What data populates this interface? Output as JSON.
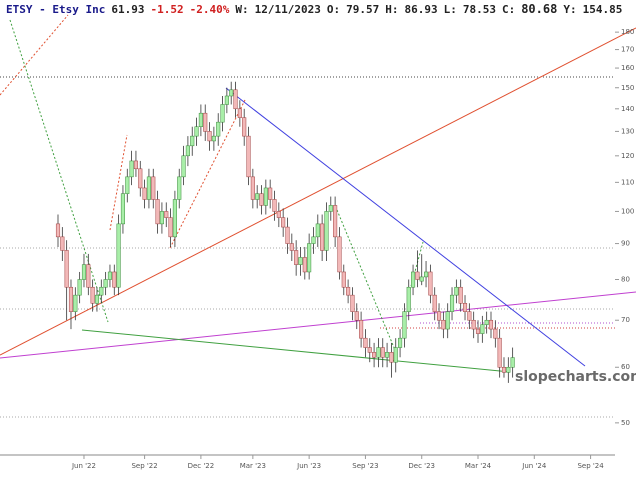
{
  "chart_data": {
    "type": "candlestick",
    "header": {
      "symbol": "ETSY - Etsy Inc",
      "last": "61.93",
      "change": "-1.52",
      "change_pct": "-2.40%",
      "week_label": "W:",
      "week": "12/11/2023",
      "open_label": "O:",
      "open": "79.57",
      "high_label": "H:",
      "high": "86.93",
      "low_label": "L:",
      "low": "78.53",
      "close_label": "C:",
      "close": "80.68",
      "y_label": "Y:",
      "y": "154.85"
    },
    "watermark": "slopecharts.com",
    "log_scale": true,
    "ylim": [
      45,
      200
    ],
    "yticks": [
      50,
      60,
      70,
      80,
      90,
      100,
      110,
      120,
      130,
      140,
      150,
      160,
      170,
      180
    ],
    "up_color": "#a8eea8",
    "down_color": "#f2b8b8",
    "categories": [
      null,
      null,
      null,
      null,
      null,
      null,
      "Jun '22",
      null,
      null,
      null,
      null,
      null,
      null,
      null,
      null,
      null,
      null,
      null,
      null,
      null,
      "Sep '22",
      null,
      null,
      null,
      null,
      null,
      null,
      null,
      null,
      null,
      null,
      null,
      null,
      "Dec '22",
      null,
      null,
      null,
      null,
      null,
      null,
      null,
      null,
      null,
      null,
      null,
      "Mar '23",
      null,
      null,
      null,
      null,
      null,
      null,
      null,
      null,
      null,
      null,
      null,
      null,
      "Jun '23",
      null,
      null,
      null,
      null,
      null,
      null,
      null,
      null,
      null,
      null,
      null,
      null,
      "Sep '23",
      null,
      null,
      null,
      null,
      null,
      null,
      null,
      null,
      null,
      null,
      null,
      null,
      "Dec '23",
      null,
      null,
      null,
      null,
      null,
      null,
      null,
      null,
      null,
      null,
      null,
      null,
      "Mar '24",
      null,
      null,
      null,
      null,
      null,
      null,
      null,
      null,
      null,
      null,
      null,
      null,
      "Jun '24",
      null,
      null,
      null,
      null,
      null,
      null,
      null,
      null,
      null,
      null,
      null,
      null,
      "Sep '24"
    ],
    "open": [
      96,
      92,
      88,
      78,
      72,
      76,
      80,
      84,
      78,
      74,
      76,
      78,
      80,
      82,
      78,
      96,
      106,
      112,
      118,
      115,
      108,
      104,
      112,
      104,
      96,
      100,
      98,
      92,
      104,
      112,
      120,
      124,
      128,
      132,
      138,
      130,
      126,
      128,
      134,
      142,
      146,
      149,
      140,
      136,
      128,
      112,
      104,
      106,
      102,
      108,
      104,
      100,
      98,
      95,
      90,
      88,
      84,
      86,
      82,
      90,
      92,
      96,
      88,
      100,
      102,
      92,
      82,
      78,
      76,
      72,
      70,
      66,
      64,
      63,
      62,
      64,
      62,
      63,
      61,
      64,
      66,
      72,
      78,
      82,
      79.57,
      80.68,
      82,
      76,
      72,
      70,
      68,
      72,
      76,
      78,
      74,
      72,
      70,
      68,
      67,
      69,
      70,
      68,
      66,
      60,
      59,
      60,
      null,
      null,
      null,
      null,
      null,
      null,
      null,
      null,
      null,
      null,
      null,
      null,
      null,
      null,
      null,
      null,
      null,
      null
    ],
    "high": [
      99,
      95,
      91,
      80,
      78,
      82,
      87,
      87,
      80,
      78,
      80,
      82,
      84,
      84,
      99,
      109,
      115,
      122,
      122,
      118,
      111,
      115,
      115,
      107,
      103,
      103,
      101,
      107,
      115,
      124,
      128,
      132,
      136,
      142,
      142,
      134,
      132,
      138,
      146,
      150,
      153,
      153,
      144,
      140,
      132,
      115,
      109,
      109,
      111,
      111,
      107,
      103,
      101,
      98,
      93,
      91,
      89,
      89,
      93,
      95,
      99,
      99,
      103,
      105,
      105,
      95,
      84,
      80,
      78,
      74,
      72,
      68,
      66,
      65,
      66,
      66,
      65,
      65,
      66,
      68,
      74,
      80,
      84,
      88,
      86.93,
      85,
      84,
      78,
      74,
      72,
      74,
      78,
      80,
      80,
      76,
      74,
      72,
      70,
      71,
      72,
      72,
      70,
      68,
      62,
      62,
      64,
      null,
      null,
      null,
      null,
      null,
      null,
      null,
      null,
      null,
      null,
      null,
      null,
      null,
      null,
      null,
      null,
      null,
      null
    ],
    "low": [
      89,
      85,
      70,
      68,
      70,
      74,
      78,
      76,
      72,
      72,
      74,
      76,
      78,
      76,
      76,
      93,
      103,
      109,
      112,
      105,
      101,
      101,
      101,
      93,
      93,
      95,
      89,
      89,
      101,
      109,
      116,
      120,
      124,
      128,
      126,
      122,
      122,
      124,
      130,
      138,
      142,
      136,
      132,
      124,
      109,
      101,
      101,
      99,
      99,
      101,
      97,
      95,
      92,
      87,
      85,
      81,
      81,
      80,
      80,
      87,
      89,
      85,
      85,
      97,
      89,
      80,
      76,
      74,
      70,
      68,
      64,
      62,
      61,
      60,
      60,
      60,
      60,
      58,
      59,
      62,
      64,
      70,
      76,
      78,
      78.53,
      78,
      74,
      70,
      68,
      66,
      66,
      70,
      74,
      72,
      70,
      68,
      66,
      65,
      65,
      67,
      66,
      64,
      58,
      58,
      57,
      58,
      null,
      null,
      null,
      null,
      null,
      null,
      null,
      null,
      null,
      null,
      null,
      null,
      null,
      null,
      null,
      null,
      null,
      null
    ],
    "close": [
      92,
      88,
      78,
      72,
      76,
      80,
      84,
      78,
      74,
      76,
      78,
      80,
      82,
      78,
      96,
      106,
      112,
      118,
      115,
      108,
      104,
      112,
      104,
      96,
      100,
      98,
      92,
      104,
      112,
      120,
      124,
      128,
      132,
      138,
      130,
      126,
      128,
      134,
      142,
      146,
      149,
      140,
      136,
      128,
      112,
      104,
      106,
      102,
      108,
      104,
      100,
      98,
      95,
      90,
      88,
      84,
      86,
      82,
      90,
      92,
      96,
      88,
      100,
      102,
      92,
      82,
      78,
      76,
      72,
      70,
      66,
      64,
      63,
      62,
      64,
      62,
      63,
      61,
      64,
      66,
      72,
      78,
      82,
      80,
      80.68,
      82,
      76,
      72,
      70,
      68,
      72,
      76,
      78,
      74,
      72,
      70,
      68,
      67,
      69,
      70,
      68,
      66,
      60,
      59,
      60,
      61.93,
      null,
      null,
      null,
      null,
      null,
      null,
      null,
      null,
      null,
      null,
      null,
      null,
      null,
      null,
      null,
      null,
      null,
      null
    ]
  }
}
